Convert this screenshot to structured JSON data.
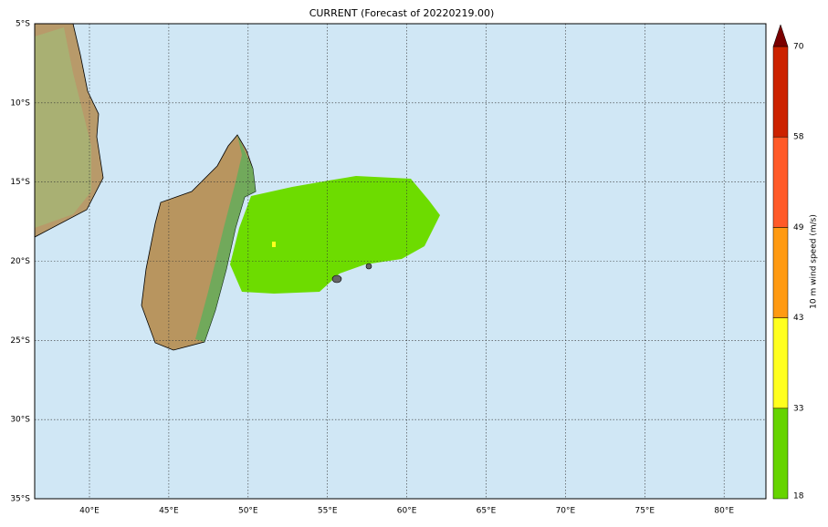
{
  "map": {
    "title": "CURRENT (Forecast of 20220219.00)",
    "lon_labels": [
      "40°E",
      "45°E",
      "50°E",
      "55°E",
      "60°E",
      "65°E",
      "70°E",
      "75°E",
      "80°E"
    ],
    "lat_labels": [
      "5°S",
      "10°S",
      "15°S",
      "20°S",
      "25°S",
      "30°S",
      "35°S"
    ],
    "colorbar": {
      "label": "10 m wind speed (m/s)",
      "levels": [
        "18",
        "33",
        "43",
        "49",
        "58",
        "70"
      ],
      "colors": [
        "#66d400",
        "#ffff1e",
        "#ff9a12",
        "#ff5a28",
        "#cc2200"
      ],
      "extend_color": "#7a0000"
    }
  }
}
